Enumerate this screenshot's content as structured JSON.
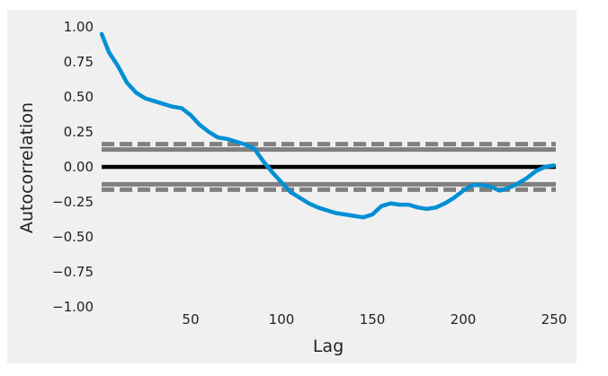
{
  "chart_data": {
    "type": "line",
    "title": "",
    "xlabel": "Lag",
    "ylabel": "Autocorrelation",
    "xlim": [
      1,
      251
    ],
    "ylim": [
      -1.0,
      1.0
    ],
    "x_ticks": [
      50,
      100,
      150,
      200,
      250
    ],
    "x_tick_labels": [
      "50",
      "100",
      "150",
      "200",
      "250"
    ],
    "y_ticks": [
      1.0,
      0.75,
      0.5,
      0.25,
      0.0,
      -0.25,
      -0.5,
      -0.75,
      -1.0
    ],
    "y_tick_labels": [
      "1.00",
      "0.75",
      "0.50",
      "0.25",
      "0.00",
      "−0.25",
      "−0.50",
      "−0.75",
      "−1.00"
    ],
    "grid": false,
    "background_color": "#f0f0f0",
    "series_color": "#008fd5",
    "reference_line_color": "#000000",
    "confidence_band_color": "#808080",
    "reference_lines": {
      "zero": 0.0,
      "confidence_95": 0.124,
      "confidence_99": 0.163
    },
    "series": [
      {
        "x": [
          1,
          5,
          10,
          15,
          20,
          25,
          30,
          35,
          40,
          45,
          50,
          55,
          60,
          65,
          70,
          75,
          80,
          85,
          90,
          95,
          100,
          105,
          110,
          115,
          120,
          125,
          130,
          135,
          140,
          145,
          150,
          155,
          160,
          165,
          170,
          175,
          180,
          185,
          190,
          195,
          200,
          205,
          210,
          215,
          220,
          225,
          230,
          235,
          240,
          245,
          250
        ],
        "values": [
          0.95,
          0.82,
          0.72,
          0.6,
          0.53,
          0.49,
          0.47,
          0.45,
          0.43,
          0.42,
          0.37,
          0.3,
          0.25,
          0.21,
          0.2,
          0.18,
          0.16,
          0.13,
          0.04,
          -0.04,
          -0.11,
          -0.18,
          -0.22,
          -0.26,
          -0.29,
          -0.31,
          -0.33,
          -0.34,
          -0.35,
          -0.36,
          -0.34,
          -0.28,
          -0.26,
          -0.27,
          -0.27,
          -0.29,
          -0.3,
          -0.29,
          -0.26,
          -0.22,
          -0.17,
          -0.13,
          -0.13,
          -0.14,
          -0.17,
          -0.15,
          -0.12,
          -0.08,
          -0.03,
          0.0,
          0.01
        ]
      }
    ]
  }
}
